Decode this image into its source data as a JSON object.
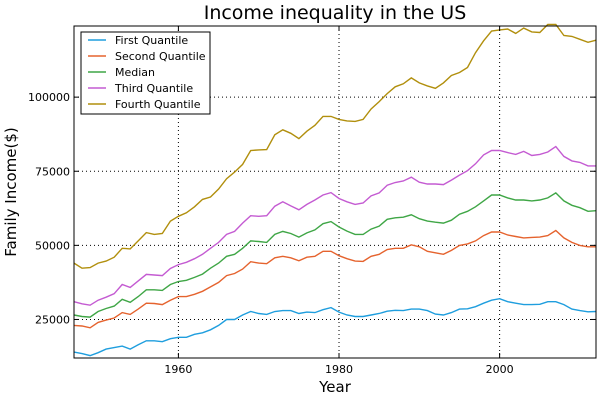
{
  "chart_data": {
    "type": "line",
    "title": "Income inequality in the US",
    "xlabel": "Year",
    "ylabel": "Family Income($)",
    "xlim": [
      1947,
      2012
    ],
    "ylim": [
      12000,
      124000
    ],
    "x_ticks": [
      1960,
      1980,
      2000
    ],
    "y_ticks": [
      25000,
      50000,
      75000,
      100000
    ],
    "x_tick_labels": [
      "1960",
      "1980",
      "2000"
    ],
    "y_tick_labels": [
      "25000",
      "50000",
      "75000",
      "100000"
    ],
    "grid": true,
    "legend_position": "top-left",
    "x": [
      1947,
      1948,
      1949,
      1950,
      1951,
      1952,
      1953,
      1954,
      1955,
      1956,
      1957,
      1958,
      1959,
      1960,
      1961,
      1962,
      1963,
      1964,
      1965,
      1966,
      1967,
      1968,
      1969,
      1970,
      1971,
      1972,
      1973,
      1974,
      1975,
      1976,
      1977,
      1978,
      1979,
      1980,
      1981,
      1982,
      1983,
      1984,
      1985,
      1986,
      1987,
      1988,
      1989,
      1990,
      1991,
      1992,
      1993,
      1994,
      1995,
      1996,
      1997,
      1998,
      1999,
      2000,
      2001,
      2002,
      2003,
      2004,
      2005,
      2006,
      2007,
      2008,
      2009,
      2010,
      2011,
      2012
    ],
    "series": [
      {
        "name": "First Quantile",
        "color": "#1f9ede",
        "values": [
          14000,
          13500,
          12800,
          13800,
          15000,
          15500,
          16000,
          15000,
          16500,
          17800,
          17800,
          17500,
          18500,
          19000,
          19000,
          20000,
          20500,
          21500,
          23000,
          25000,
          25000,
          26500,
          27700,
          27000,
          26700,
          27700,
          28000,
          28000,
          27000,
          27500,
          27300,
          28300,
          29000,
          27500,
          26500,
          26000,
          26000,
          26500,
          27000,
          27800,
          28100,
          28000,
          28500,
          28500,
          28000,
          26800,
          26500,
          27300,
          28500,
          28600,
          29300,
          30500,
          31500,
          32000,
          31000,
          30500,
          30000,
          30000,
          30100,
          31000,
          31000,
          30000,
          28500,
          28000,
          27600,
          27700
        ]
      },
      {
        "name": "Second Quantile",
        "color": "#e5632e",
        "values": [
          23000,
          22800,
          22200,
          24000,
          24800,
          25500,
          27300,
          26700,
          28500,
          30500,
          30400,
          30000,
          31500,
          32700,
          32700,
          33500,
          34500,
          36000,
          37500,
          39800,
          40500,
          42000,
          44500,
          44000,
          43800,
          45800,
          46300,
          45800,
          44800,
          46000,
          46300,
          48000,
          48000,
          46500,
          45500,
          44700,
          44600,
          46300,
          47000,
          48600,
          49000,
          49000,
          50200,
          49500,
          48000,
          47500,
          47000,
          48300,
          50000,
          50500,
          51500,
          53300,
          54500,
          54500,
          53500,
          53000,
          52500,
          52700,
          52800,
          53300,
          55000,
          52500,
          51000,
          50000,
          49500,
          49500
        ]
      },
      {
        "name": "Median",
        "color": "#3fa646",
        "values": [
          26500,
          26000,
          25800,
          27700,
          28700,
          29500,
          31800,
          30800,
          32700,
          35000,
          35000,
          34800,
          36800,
          37800,
          38200,
          39200,
          40300,
          42300,
          44000,
          46300,
          47000,
          49000,
          51500,
          51300,
          51000,
          53700,
          54700,
          54000,
          52800,
          54200,
          55200,
          57300,
          58000,
          56200,
          54800,
          53700,
          53700,
          55500,
          56500,
          58800,
          59300,
          59500,
          60300,
          59000,
          58200,
          57800,
          57500,
          58500,
          60500,
          61500,
          63000,
          65000,
          67000,
          67000,
          66000,
          65300,
          65300,
          65000,
          65300,
          66000,
          67700,
          65000,
          63500,
          62700,
          61500,
          61700
        ]
      },
      {
        "name": "Third Quantile",
        "color": "#c45bd2",
        "values": [
          31000,
          30300,
          29800,
          31500,
          32500,
          33700,
          36800,
          35800,
          38000,
          40200,
          40000,
          39800,
          42200,
          43500,
          44300,
          45500,
          47000,
          49000,
          51000,
          53700,
          54700,
          57500,
          60000,
          59800,
          60000,
          63200,
          64700,
          63300,
          62000,
          63800,
          65300,
          67000,
          67800,
          65800,
          64700,
          63800,
          64300,
          66700,
          67700,
          70300,
          71200,
          71700,
          73000,
          71300,
          70700,
          70700,
          70500,
          72000,
          73700,
          75200,
          77500,
          80500,
          82000,
          82000,
          81300,
          80700,
          81700,
          80300,
          80700,
          81500,
          83300,
          80000,
          78500,
          78000,
          76800,
          76800
        ]
      },
      {
        "name": "Fourth Quantile",
        "color": "#b18f0d",
        "values": [
          44000,
          42300,
          42500,
          44000,
          44700,
          46000,
          49000,
          48800,
          51500,
          54300,
          53700,
          54000,
          58200,
          59800,
          61000,
          63000,
          65500,
          66300,
          69000,
          72500,
          74700,
          77300,
          82000,
          82200,
          82300,
          87300,
          89000,
          87800,
          86000,
          88500,
          90500,
          93500,
          93500,
          92500,
          92000,
          91800,
          92500,
          96000,
          98500,
          101200,
          103500,
          104500,
          106500,
          104800,
          103800,
          103000,
          104800,
          107300,
          108300,
          110000,
          115000,
          119000,
          122300,
          122700,
          123000,
          121500,
          123300,
          122000,
          121800,
          124500,
          124500,
          120800,
          120500,
          119500,
          118500,
          119200
        ]
      }
    ]
  }
}
